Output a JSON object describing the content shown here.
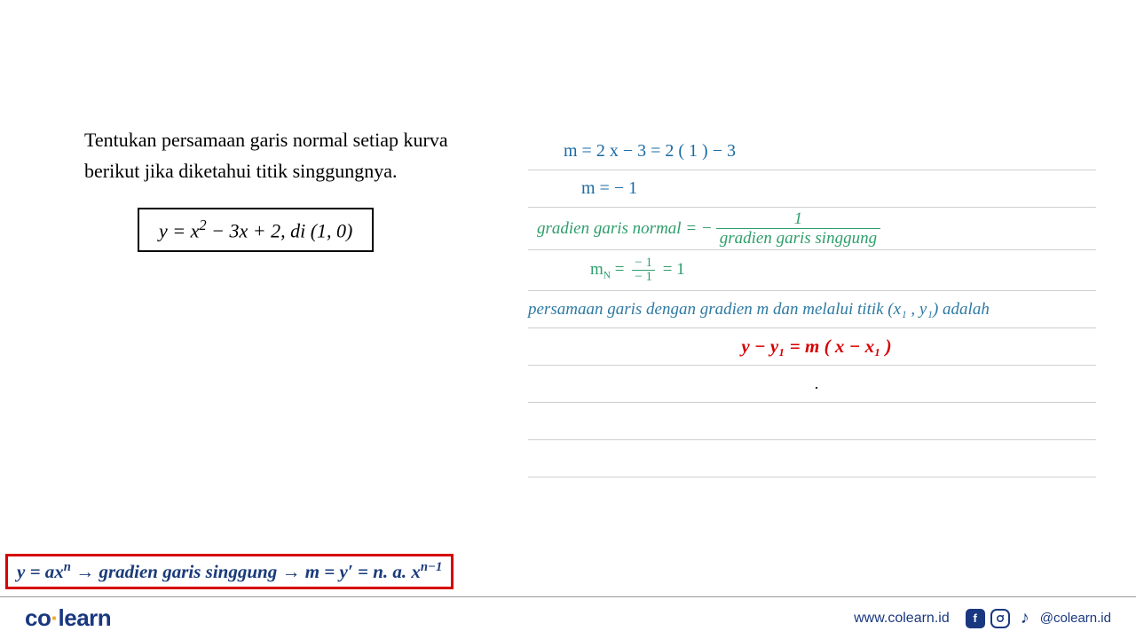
{
  "colors": {
    "hand_blue": "#1a6aa3",
    "hand_green": "#2e9e6b",
    "formula_text": "#1a3b7a",
    "formula_border": "#d60000",
    "red": "#d60000",
    "rule": "#cfcfcf",
    "brand": "#1a3880",
    "accent": "#f5a623",
    "background": "#ffffff"
  },
  "fonts": {
    "body": "Times New Roman",
    "handwriting": "Comic Sans MS",
    "problem_size_pt": 17,
    "work_size_pt": 15,
    "formula_size_pt": 16
  },
  "problem": {
    "line1": "Tentukan persamaan garis normal setiap kurva",
    "line2": "berikut jika diketahui titik singgungnya.",
    "equation_html": "y = x<span class='sup'>2</span> − 3x + 2, di (1, 0)"
  },
  "work": {
    "line1": "m  =  2 x − 3   =  2 ( 1 ) − 3",
    "line2": "m  =  − 1",
    "line3_prefix": "gradien garis normal = −",
    "line3_frac_num": "1",
    "line3_frac_den": "gradien garis singgung",
    "line4_prefix": "m",
    "line4_sub": "N",
    "line4_mid": "  =  ",
    "line4_frac_num": "− 1",
    "line4_frac_den": "− 1",
    "line4_suffix": "  =  1",
    "line5": "persamaan garis dengan gradien m dan melalui titik (x₁ , y₁) adalah",
    "line6": "y − y₁ = m ( x − x₁ )",
    "dot": "."
  },
  "bottom_formula_html": "y = ax<span class='supn'>n</span>  → gradien garis singgung → m = y′  = n. a. x<span class='supn'>n−1</span>",
  "footer": {
    "logo_a": "co",
    "logo_b": "learn",
    "url": "www.colearn.id",
    "handle": "@colearn.id",
    "icons": [
      "facebook-icon",
      "instagram-icon",
      "tiktok-icon"
    ]
  }
}
